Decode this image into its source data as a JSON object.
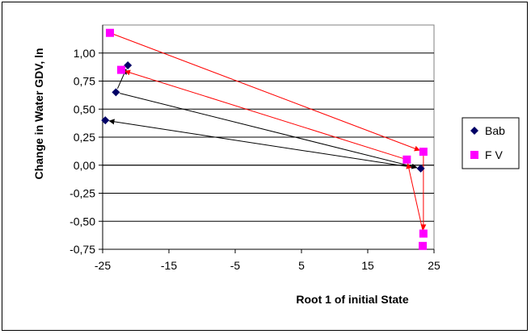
{
  "chart_data": {
    "type": "scatter",
    "title": "",
    "xlabel": "Root 1 of initial State",
    "ylabel": "Change in Water GDV, ln",
    "xlim": [
      -25,
      25
    ],
    "ylim": [
      -0.75,
      1.25
    ],
    "x_ticks": [
      -25,
      -15,
      -5,
      5,
      15,
      25
    ],
    "x_tick_labels": [
      "-25",
      "-15",
      "-5",
      "5",
      "15",
      "25"
    ],
    "y_ticks": [
      1.0,
      0.75,
      0.5,
      0.25,
      0.0,
      -0.25,
      -0.5,
      -0.75
    ],
    "y_tick_labels": [
      "1,00",
      "0,75",
      "0,50",
      "0,25",
      "0,00",
      "-0,25",
      "-0,50",
      "-0,75"
    ],
    "legend_position": "right",
    "series": [
      {
        "name": "Bab",
        "marker": "diamond",
        "color": "#000066",
        "arrow_color": "#000000",
        "points": [
          {
            "x": -21.2,
            "y": 0.89
          },
          {
            "x": -23.0,
            "y": 0.65
          },
          {
            "x": -24.6,
            "y": 0.4
          },
          {
            "x": 23.0,
            "y": -0.03
          }
        ],
        "arrows": [
          {
            "from": [
              -23.0,
              0.65
            ],
            "to": [
              23.0,
              -0.03
            ]
          },
          {
            "from": [
              23.0,
              -0.03
            ],
            "to": [
              -24.6,
              0.4
            ]
          },
          {
            "from": [
              -23.0,
              0.65
            ],
            "to": [
              -21.2,
              0.89
            ]
          }
        ]
      },
      {
        "name": "F V",
        "marker": "square",
        "color": "#FF00FF",
        "arrow_color": "#FF0000",
        "points": [
          {
            "x": -23.9,
            "y": 1.18
          },
          {
            "x": -22.2,
            "y": 0.85
          },
          {
            "x": 20.9,
            "y": 0.05
          },
          {
            "x": 23.4,
            "y": 0.12
          },
          {
            "x": 23.4,
            "y": -0.61
          },
          {
            "x": 23.3,
            "y": -0.72
          }
        ],
        "arrows": [
          {
            "from": [
              -23.9,
              1.18
            ],
            "to": [
              23.4,
              0.12
            ]
          },
          {
            "from": [
              23.4,
              0.12
            ],
            "to": [
              23.4,
              -0.61
            ]
          },
          {
            "from": [
              23.4,
              -0.61
            ],
            "to": [
              20.9,
              0.05
            ]
          },
          {
            "from": [
              20.9,
              0.05
            ],
            "to": [
              -22.2,
              0.85
            ]
          }
        ]
      }
    ]
  }
}
